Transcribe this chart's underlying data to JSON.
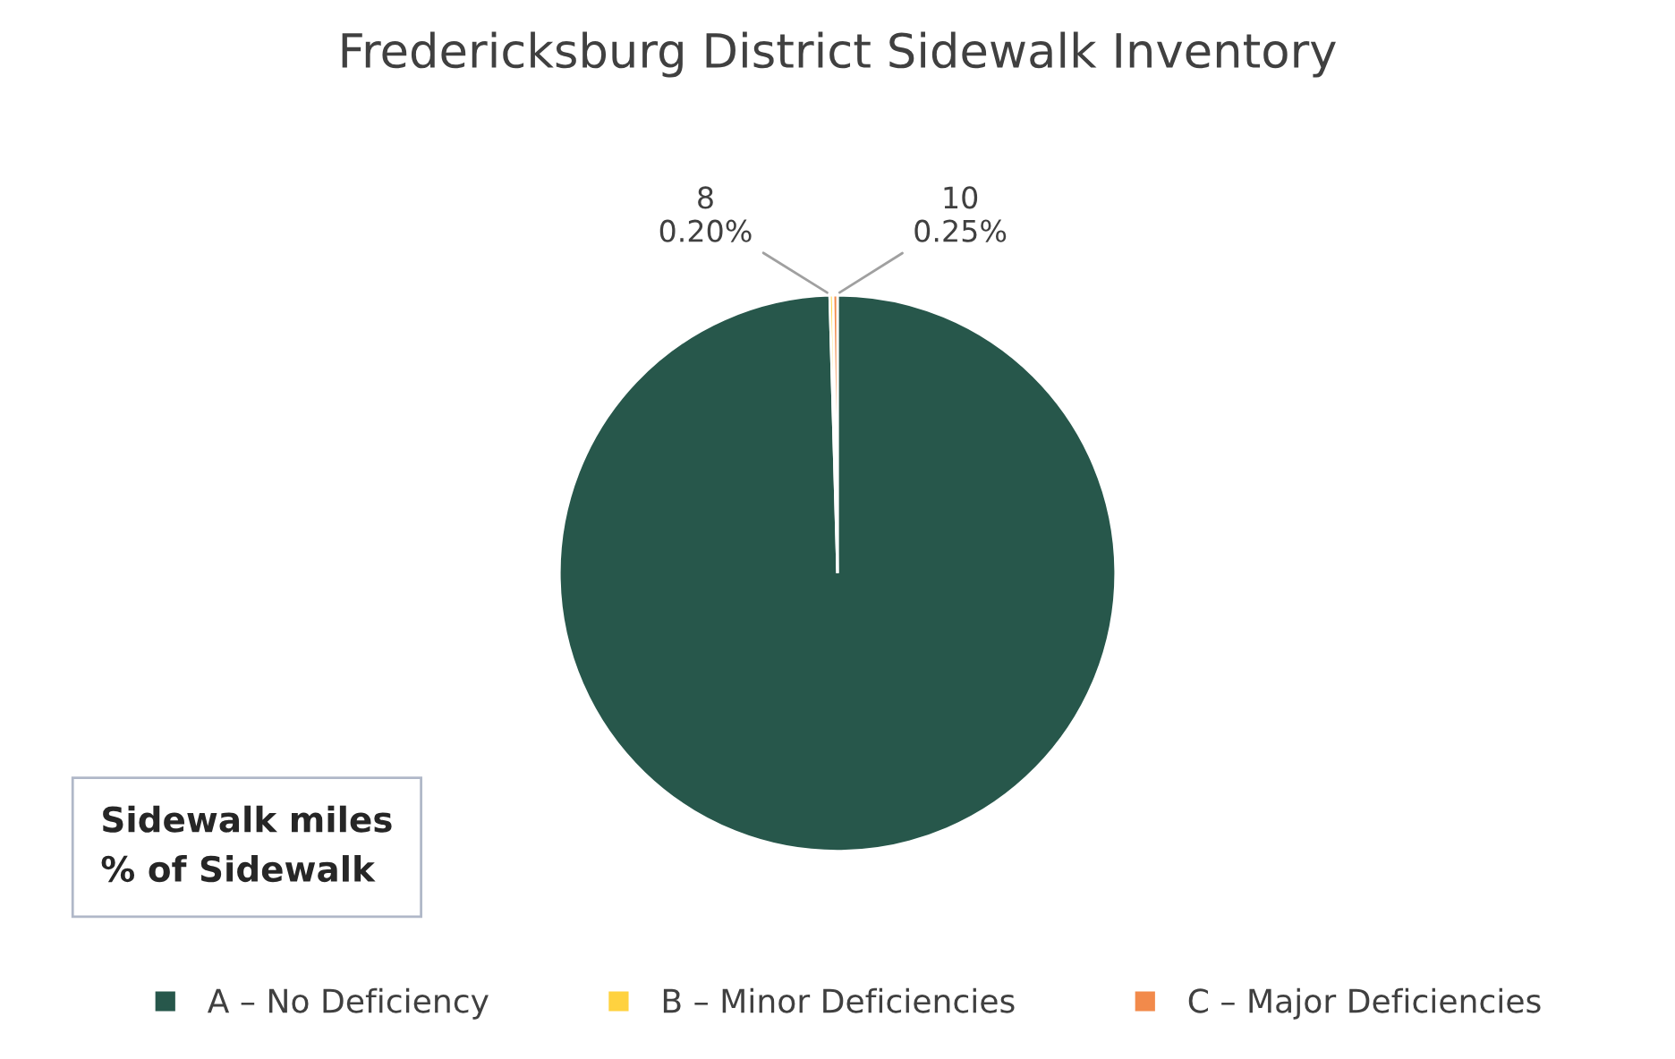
{
  "chart_data": {
    "type": "pie",
    "title": "Fredericksburg District Sidewalk Inventory",
    "categories": [
      "A – No Deficiency",
      "B – Minor Deficiencies",
      "C – Major Deficiencies"
    ],
    "values": [
      99.55,
      0.2,
      0.25
    ],
    "value_labels": [
      null,
      "8\n0.20%",
      "10\n0.25%"
    ],
    "colors": [
      "#27574b",
      "#ffd23f",
      "#f28a4b"
    ],
    "annotations": [
      "Sidewalk miles\n% of Sidewalk"
    ],
    "legend": "bottom"
  }
}
